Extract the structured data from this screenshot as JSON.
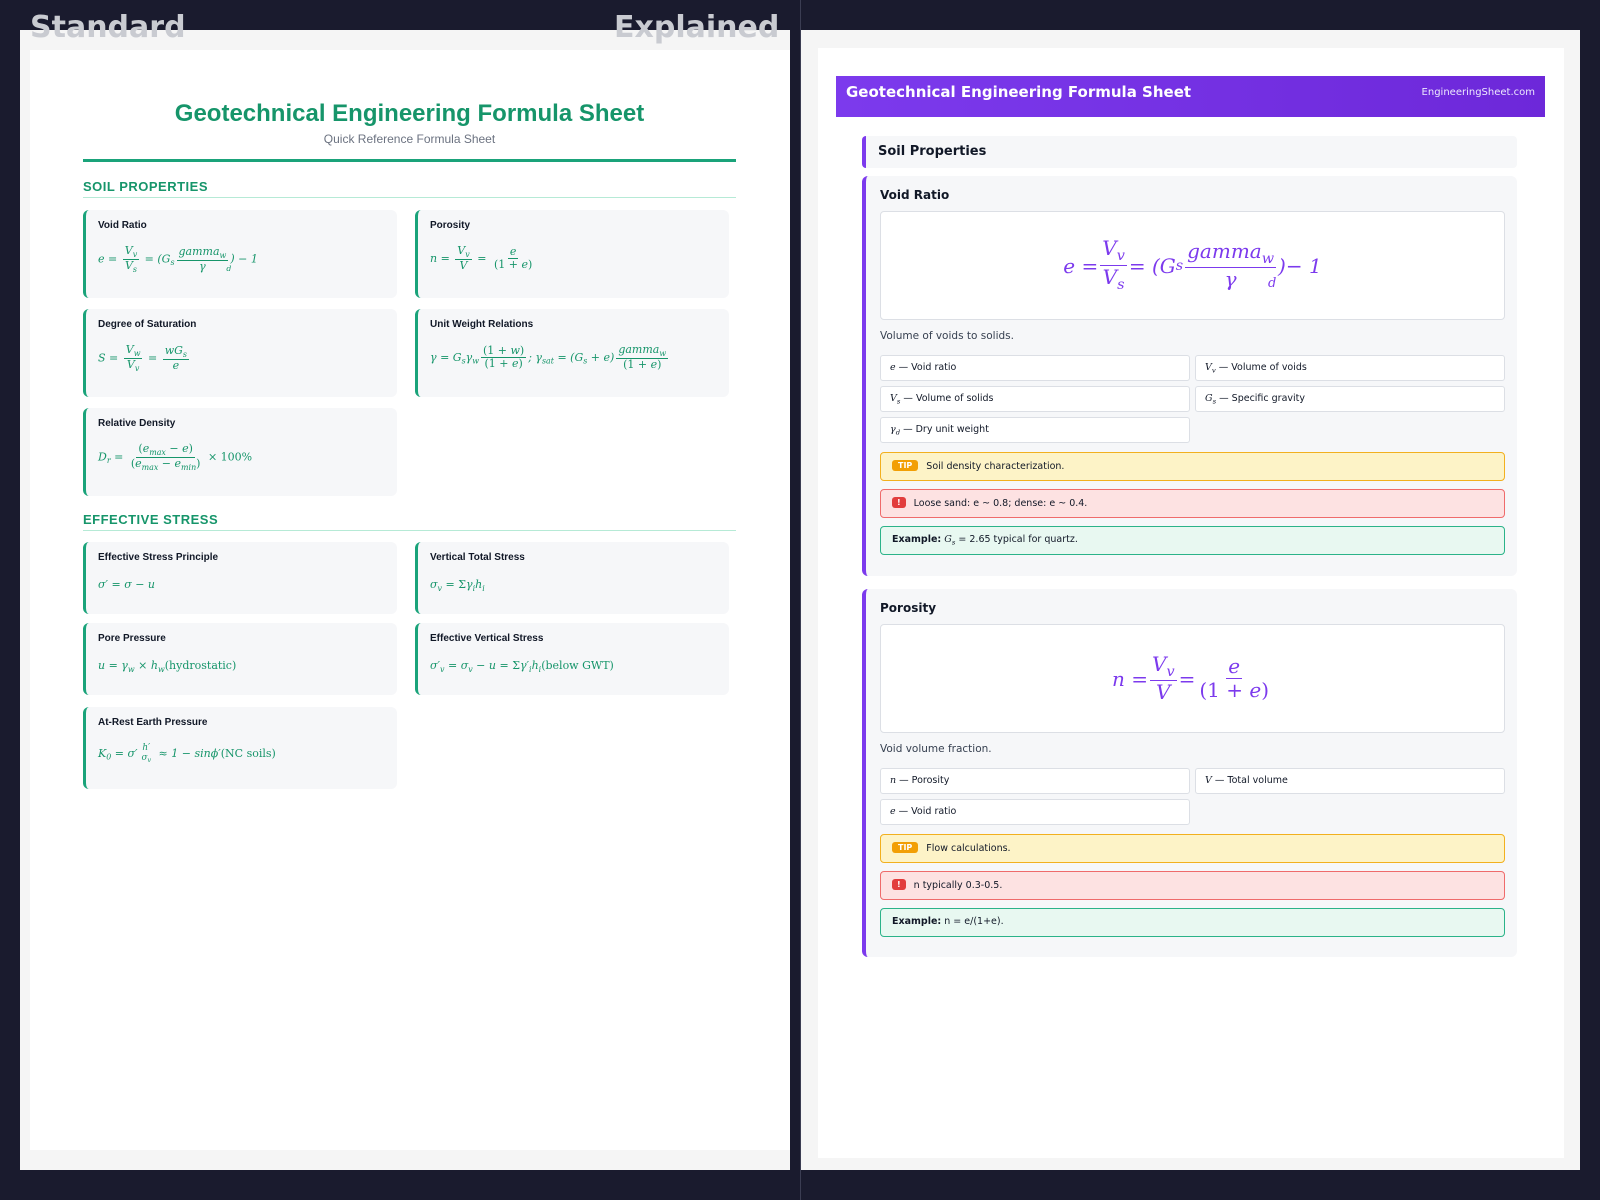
{
  "labels": {
    "standard": "Standard",
    "explained": "Explained"
  },
  "standard": {
    "title": "Geotechnical Engineering Formula Sheet",
    "subtitle": "Quick Reference Formula Sheet",
    "sections": [
      {
        "title": "SOIL PROPERTIES",
        "cards": [
          {
            "name": "Void Ratio"
          },
          {
            "name": "Porosity"
          },
          {
            "name": "Degree of Saturation"
          },
          {
            "name": "Unit Weight Relations"
          },
          {
            "name": "Relative Density"
          }
        ]
      },
      {
        "title": "EFFECTIVE STRESS",
        "cards": [
          {
            "name": "Effective Stress Principle"
          },
          {
            "name": "Vertical Total Stress"
          },
          {
            "name": "Pore Pressure"
          },
          {
            "name": "Effective Vertical Stress"
          },
          {
            "name": "At-Rest Earth Pressure"
          }
        ]
      }
    ]
  },
  "explained": {
    "header_title": "Geotechnical Engineering Formula Sheet",
    "site": "EngineeringSheet.com",
    "section_title": "Soil Properties",
    "cards": [
      {
        "name": "Void Ratio",
        "description": "Volume of voids to solids.",
        "vars": [
          {
            "sym": "e",
            "text": "— Void ratio"
          },
          {
            "sym": "Vv",
            "text": "— Volume of voids"
          },
          {
            "sym": "Vs",
            "text": "— Volume of solids"
          },
          {
            "sym": "Gs",
            "text": "— Specific gravity"
          },
          {
            "sym": "γd",
            "text": "— Dry unit weight"
          }
        ],
        "tip_tag": "TIP",
        "tip": "Soil density characterization.",
        "warn_tag": "!",
        "warning": "Loose sand: e ~ 0.8; dense: e ~ 0.4.",
        "example_label": "Example:",
        "example": "= 2.65 typical for quartz."
      },
      {
        "name": "Porosity",
        "description": "Void volume fraction.",
        "vars": [
          {
            "sym": "n",
            "text": "— Porosity"
          },
          {
            "sym": "V",
            "text": "— Total volume"
          },
          {
            "sym": "e",
            "text": "— Void ratio"
          }
        ],
        "tip_tag": "TIP",
        "tip": "Flow calculations.",
        "warn_tag": "!",
        "warning": "n typically 0.3-0.5.",
        "example_label": "Example:",
        "example": "n = e/(1+e)."
      }
    ]
  }
}
